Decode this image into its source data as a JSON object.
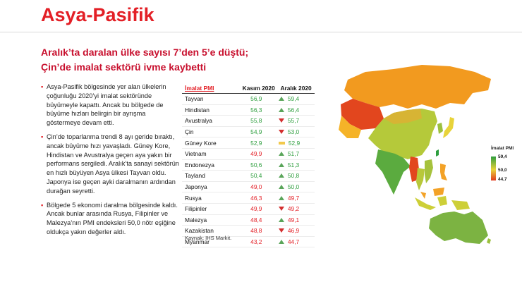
{
  "page": {
    "title": "Asya-Pasifik",
    "subtitle_line1": "Aralık’ta daralan ülke sayısı 7’den 5’e düştü;",
    "subtitle_line2": "Çin’de imalat sektörü ivme kaybetti"
  },
  "bullets": [
    "Asya-Pasifik bölgesinde yer alan ülkelerin çoğunluğu 2020’yi imalat sektöründe büyümeyle kapattı. Ancak bu bölgede de büyüme hızları belirgin bir ayrışma göstermeye devam etti.",
    "Çin’de toparlanma trendi 8 ayı geride bıraktı, ancak büyüme hızı yavaşladı. Güney Kore, Hindistan ve Avustralya geçen aya yakın bir performans sergiledi. Aralık’ta sanayi sektörün en hızlı büyüyen Asya ülkesi Tayvan oldu. Japonya ise geçen ayki daralmanın ardından durağan seyretti.",
    "Bölgede 5 ekonomi daralma bölgesinde kaldı. Ancak bunlar arasında Rusya, Filipinler ve Malezya’nın PMI endeksleri 50,0 nötr eşiğine oldukça yakın değerler aldı."
  ],
  "chart_data": {
    "type": "table",
    "columns": [
      "İmalat PMI",
      "Kasım 2020",
      "Aralık 2020"
    ],
    "threshold": 50.0,
    "rows": [
      {
        "country": "Tayvan",
        "nov": "56,9",
        "dec": "59,4",
        "trend": "up"
      },
      {
        "country": "Hindistan",
        "nov": "56,3",
        "dec": "56,4",
        "trend": "up"
      },
      {
        "country": "Avustralya",
        "nov": "55,8",
        "dec": "55,7",
        "trend": "down"
      },
      {
        "country": "Çin",
        "nov": "54,9",
        "dec": "53,0",
        "trend": "down"
      },
      {
        "country": "Güney Kore",
        "nov": "52,9",
        "dec": "52,9",
        "trend": "flat"
      },
      {
        "country": "Vietnam",
        "nov": "49,9",
        "dec": "51,7",
        "trend": "up"
      },
      {
        "country": "Endonezya",
        "nov": "50,6",
        "dec": "51,3",
        "trend": "up"
      },
      {
        "country": "Tayland",
        "nov": "50,4",
        "dec": "50,8",
        "trend": "up"
      },
      {
        "country": "Japonya",
        "nov": "49,0",
        "dec": "50,0",
        "trend": "up"
      },
      {
        "country": "Rusya",
        "nov": "46,3",
        "dec": "49,7",
        "trend": "up"
      },
      {
        "country": "Filipinler",
        "nov": "49,9",
        "dec": "49,2",
        "trend": "down"
      },
      {
        "country": "Malezya",
        "nov": "48,4",
        "dec": "49,1",
        "trend": "up"
      },
      {
        "country": "Kazakistan",
        "nov": "48,8",
        "dec": "46,9",
        "trend": "down"
      },
      {
        "country": "Myanmar",
        "nov": "43,2",
        "dec": "44,7",
        "trend": "up"
      }
    ],
    "source": "Kaynak: IHS Markit.",
    "legend": {
      "title": "İmalat PMI",
      "max": "59,4",
      "mid": "50,0",
      "min": "44,7"
    }
  },
  "colors": {
    "accent": "#e31f26",
    "positive": "#2e9e3e",
    "negative": "#e31f26",
    "arrow_up": "#5aa55a",
    "arrow_down": "#d32f2f",
    "arrow_flat": "#f2c94c",
    "map_green": "#7cb342",
    "map_yellow": "#e8d33a",
    "map_orange": "#f29a1f",
    "map_red": "#e2461e"
  }
}
